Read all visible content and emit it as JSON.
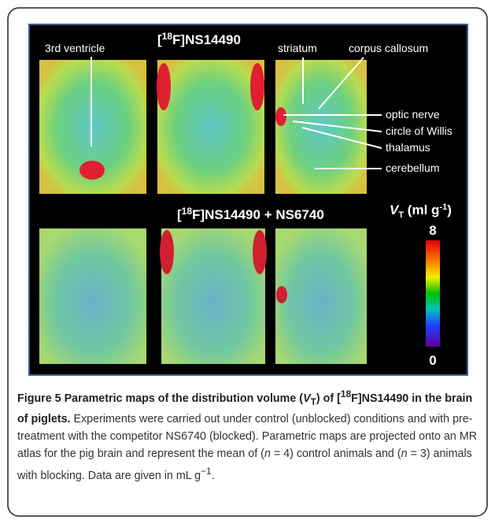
{
  "figure": {
    "top_heading": [
      "[",
      "18",
      "F]NS14490"
    ],
    "bottom_heading": [
      "[",
      "18",
      "F]NS14490 + NS6740"
    ],
    "annotations": [
      "3rd ventricle",
      "striatum",
      "corpus callosum",
      "optic nerve",
      "circle of Willis",
      "thalamus",
      "cerebellum"
    ],
    "colorbar": {
      "label": [
        "V",
        "T",
        " (ml g",
        "-1",
        ")"
      ],
      "max": "8",
      "min": "0"
    }
  },
  "caption": {
    "label": "Figure 5",
    "title": [
      " Parametric maps of the distribution volume (",
      "V",
      "T",
      ") of [",
      "18",
      "F]NS14490 in the brain of piglets."
    ],
    "text": [
      " Experiments were carried out under control (unblocked) conditions and with pre-treatment with the competitor NS6740 (blocked). Parametric maps are projected onto an MR atlas for the pig brain and represent the mean of (",
      "n",
      " = 4) control animals and (",
      "n",
      " = 3) animals with blocking. Data are given in mL g",
      "−1",
      "."
    ]
  }
}
